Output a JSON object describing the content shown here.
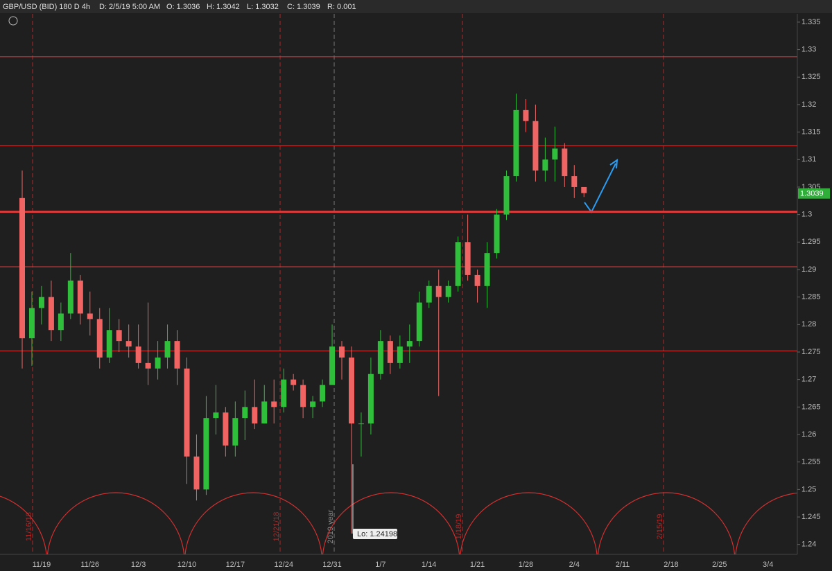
{
  "header": {
    "symbol": "GBP/USD (BID) 180 D 4h",
    "date": "D: 2/5/19 5:00 AM",
    "open": "O: 1.3036",
    "high": "H: 1.3042",
    "low": "L: 1.3032",
    "close": "C: 1.3039",
    "range": "R: 0.001"
  },
  "chart_data": {
    "type": "candlestick",
    "categories": [
      null,
      null,
      "11/19",
      null,
      null,
      null,
      null,
      "11/26",
      null,
      null,
      null,
      null,
      "12/3",
      null,
      null,
      null,
      null,
      "12/10",
      null,
      null,
      null,
      null,
      "12/17",
      null,
      null,
      null,
      null,
      "12/24",
      null,
      null,
      null,
      null,
      "12/31",
      null,
      null,
      null,
      null,
      "1/7",
      null,
      null,
      null,
      null,
      "1/14",
      null,
      null,
      null,
      null,
      "1/21",
      null,
      null,
      null,
      null,
      "1/28",
      null,
      null,
      null,
      null,
      "2/4",
      null,
      null,
      null,
      null,
      "2/11",
      null,
      null,
      null,
      null,
      "2/18",
      null,
      null,
      null,
      null,
      "2/25",
      null,
      null,
      null,
      null,
      "3/4",
      null,
      null,
      null,
      null
    ],
    "open": [
      1.303,
      1.2775,
      1.283,
      1.285,
      1.279,
      1.282,
      1.288,
      1.282,
      1.281,
      1.274,
      1.279,
      1.277,
      1.276,
      1.273,
      1.272,
      1.274,
      1.277,
      1.272,
      1.256,
      1.25,
      1.263,
      1.264,
      1.258,
      1.263,
      1.265,
      1.262,
      1.266,
      1.265,
      1.27,
      1.269,
      1.265,
      1.266,
      1.269,
      1.276,
      1.274,
      1.262,
      1.262,
      1.271,
      1.277,
      1.273,
      1.276,
      1.277,
      1.284,
      1.287,
      1.285,
      1.287,
      1.295,
      1.289,
      1.287,
      1.293,
      1.3,
      1.307,
      1.319,
      1.317,
      1.308,
      1.31,
      1.312,
      1.307,
      1.305,
      null,
      null,
      null,
      null,
      null,
      null,
      null,
      null,
      null,
      null,
      null,
      null,
      null,
      null,
      null,
      null,
      null,
      null,
      null,
      null,
      null,
      null,
      null
    ],
    "high": [
      1.308,
      1.286,
      1.287,
      1.288,
      1.284,
      1.293,
      1.289,
      1.286,
      1.283,
      1.283,
      1.281,
      1.28,
      1.28,
      1.284,
      1.277,
      1.28,
      1.279,
      1.274,
      1.26,
      1.267,
      1.269,
      1.265,
      1.266,
      1.268,
      1.27,
      1.269,
      1.27,
      1.272,
      1.271,
      1.27,
      1.267,
      1.27,
      1.28,
      1.277,
      1.276,
      1.264,
      1.274,
      1.279,
      1.278,
      1.278,
      1.28,
      1.286,
      1.288,
      1.29,
      1.288,
      1.296,
      1.3,
      1.29,
      1.295,
      1.301,
      1.308,
      1.322,
      1.321,
      1.32,
      1.314,
      1.316,
      1.313,
      1.309,
      1.3042,
      null,
      null,
      null,
      null,
      null,
      null,
      null,
      null,
      null,
      null,
      null,
      null,
      null,
      null,
      null,
      null,
      null,
      null,
      null,
      null,
      null,
      null,
      null
    ],
    "low": [
      1.272,
      1.2725,
      1.28,
      1.277,
      1.277,
      1.281,
      1.28,
      1.278,
      1.272,
      1.273,
      1.275,
      1.274,
      1.272,
      1.269,
      1.27,
      1.272,
      1.269,
      1.251,
      1.248,
      1.249,
      1.26,
      1.256,
      1.256,
      1.259,
      1.261,
      1.262,
      1.262,
      1.264,
      1.268,
      1.263,
      1.263,
      1.265,
      1.269,
      1.27,
      1.24198,
      1.256,
      1.26,
      1.27,
      1.271,
      1.272,
      1.273,
      1.276,
      1.283,
      1.267,
      1.284,
      1.286,
      1.288,
      1.284,
      1.283,
      1.292,
      1.299,
      1.306,
      1.315,
      1.306,
      1.306,
      1.306,
      1.305,
      1.303,
      1.3032,
      null,
      null,
      null,
      null,
      null,
      null,
      null,
      null,
      null,
      null,
      null,
      null,
      null,
      null,
      null,
      null,
      null,
      null,
      null,
      null,
      null,
      null,
      null
    ],
    "close": [
      1.2775,
      1.283,
      1.285,
      1.279,
      1.282,
      1.288,
      1.282,
      1.281,
      1.274,
      1.279,
      1.277,
      1.276,
      1.273,
      1.272,
      1.274,
      1.277,
      1.272,
      1.256,
      1.25,
      1.263,
      1.264,
      1.258,
      1.263,
      1.265,
      1.262,
      1.266,
      1.265,
      1.27,
      1.269,
      1.265,
      1.266,
      1.269,
      1.276,
      1.274,
      1.262,
      1.262,
      1.271,
      1.277,
      1.273,
      1.276,
      1.277,
      1.284,
      1.287,
      1.285,
      1.287,
      1.295,
      1.289,
      1.287,
      1.293,
      1.3,
      1.307,
      1.319,
      1.317,
      1.308,
      1.31,
      1.312,
      1.307,
      1.305,
      1.3039,
      null,
      null,
      null,
      null,
      null,
      null,
      null,
      null,
      null,
      null,
      null,
      null,
      null,
      null,
      null,
      null,
      null,
      null,
      null,
      null,
      null,
      null,
      null
    ],
    "up_color": "#2fbf3a",
    "down_color": "#f06464",
    "ylim": [
      1.2382,
      1.3365
    ],
    "yticks": [
      1.24,
      1.245,
      1.25,
      1.255,
      1.26,
      1.265,
      1.27,
      1.275,
      1.28,
      1.285,
      1.29,
      1.295,
      1.3,
      1.305,
      1.31,
      1.315,
      1.32,
      1.325,
      1.33,
      1.335
    ],
    "levels": [
      1.3287,
      1.3125,
      1.3005,
      1.2905,
      1.2752
    ],
    "level_color": "#e03b3b",
    "cycle_labels": [
      "11/16/18",
      "12/21/18",
      "2019 year",
      "1/18/19",
      "2/15/19"
    ],
    "low_label": "Lo: 1.24198",
    "last_price": 1.3039
  }
}
